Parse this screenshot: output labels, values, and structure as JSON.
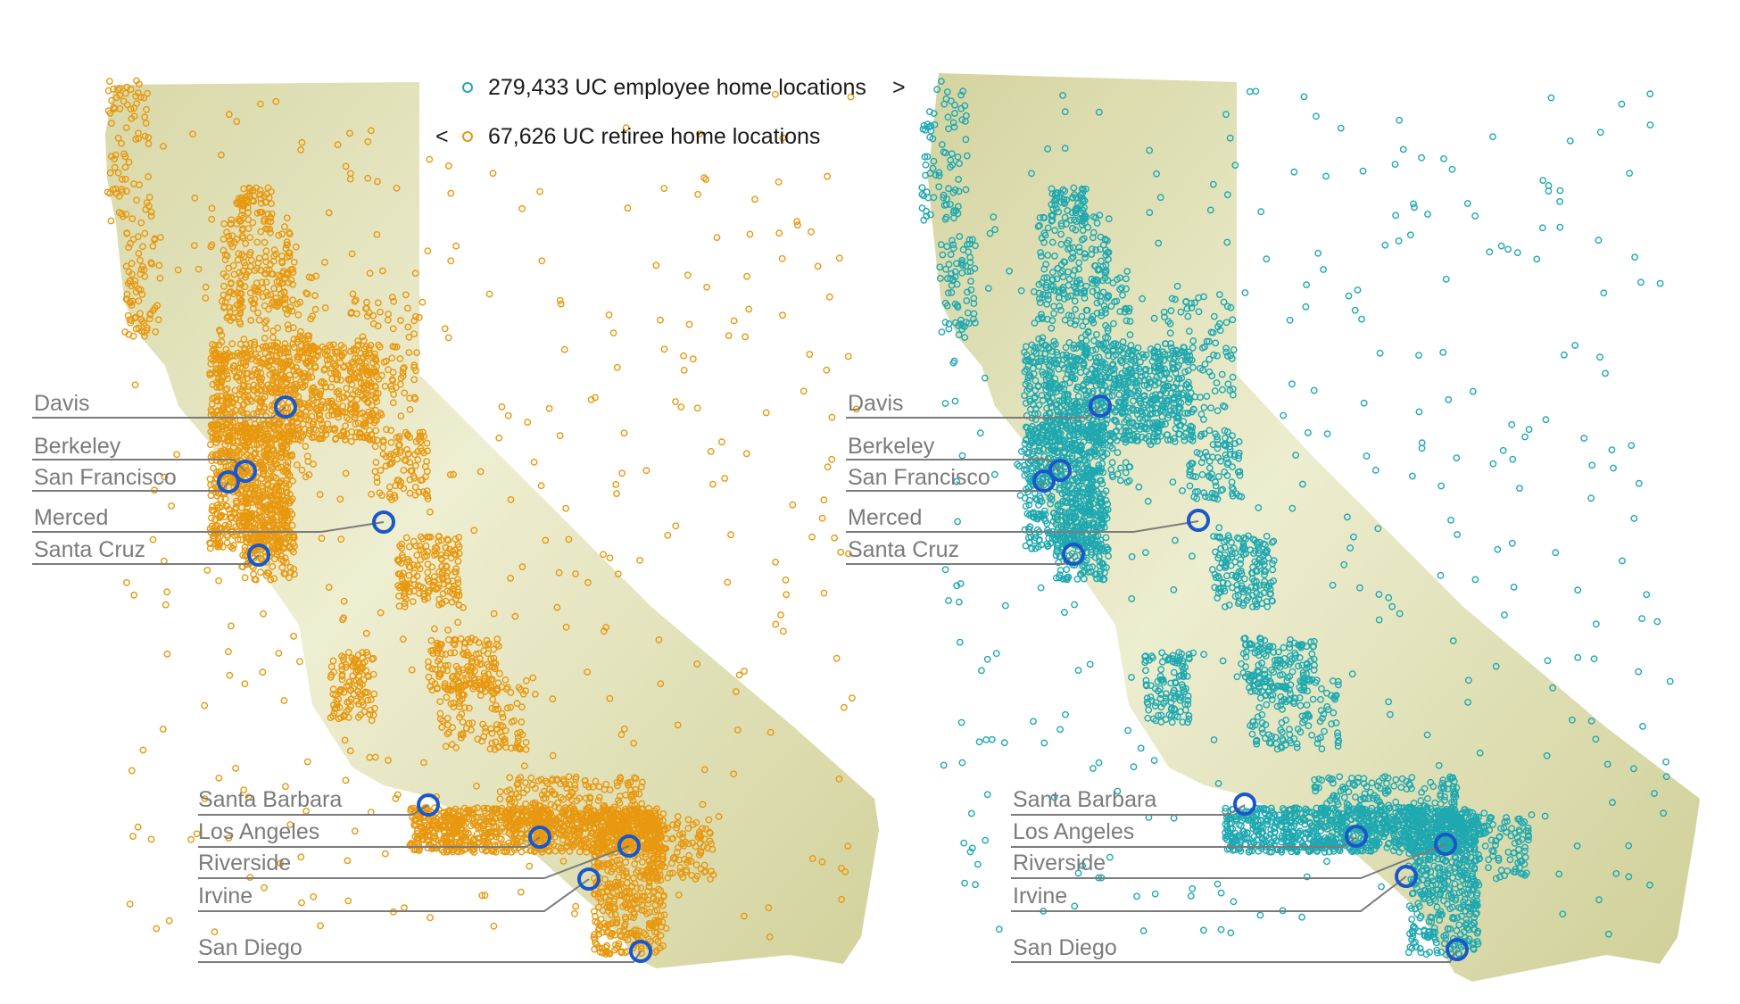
{
  "legend": {
    "employee_text": "279,433 UC employee home locations",
    "employee_arrow": ">",
    "retiree_arrow": "<",
    "retiree_text": "67,626 UC retiree home locations",
    "employee_color": "#1fa8b0",
    "retiree_color": "#e8980f"
  },
  "maps": [
    {
      "name": "retiree-map",
      "dot_color": "#e8980f",
      "campuses": [
        {
          "label": "Davis"
        },
        {
          "label": "Berkeley"
        },
        {
          "label": "San Francisco"
        },
        {
          "label": "Merced"
        },
        {
          "label": "Santa Cruz"
        },
        {
          "label": "Santa Barbara"
        },
        {
          "label": "Los Angeles"
        },
        {
          "label": "Riverside"
        },
        {
          "label": "Irvine"
        },
        {
          "label": "San Diego"
        }
      ]
    },
    {
      "name": "employee-map",
      "dot_color": "#1fa8b0",
      "campuses": [
        {
          "label": "Davis"
        },
        {
          "label": "Berkeley"
        },
        {
          "label": "San Francisco"
        },
        {
          "label": "Merced"
        },
        {
          "label": "Santa Cruz"
        },
        {
          "label": "Santa Barbara"
        },
        {
          "label": "Los Angeles"
        },
        {
          "label": "Riverside"
        },
        {
          "label": "Irvine"
        },
        {
          "label": "San Diego"
        }
      ]
    }
  ],
  "colors": {
    "terrain_light": "#f1f1dc",
    "terrain_dark": "#cfcf98",
    "campus_ring": "#1a57c9",
    "leader_line": "#7b7b7b"
  }
}
